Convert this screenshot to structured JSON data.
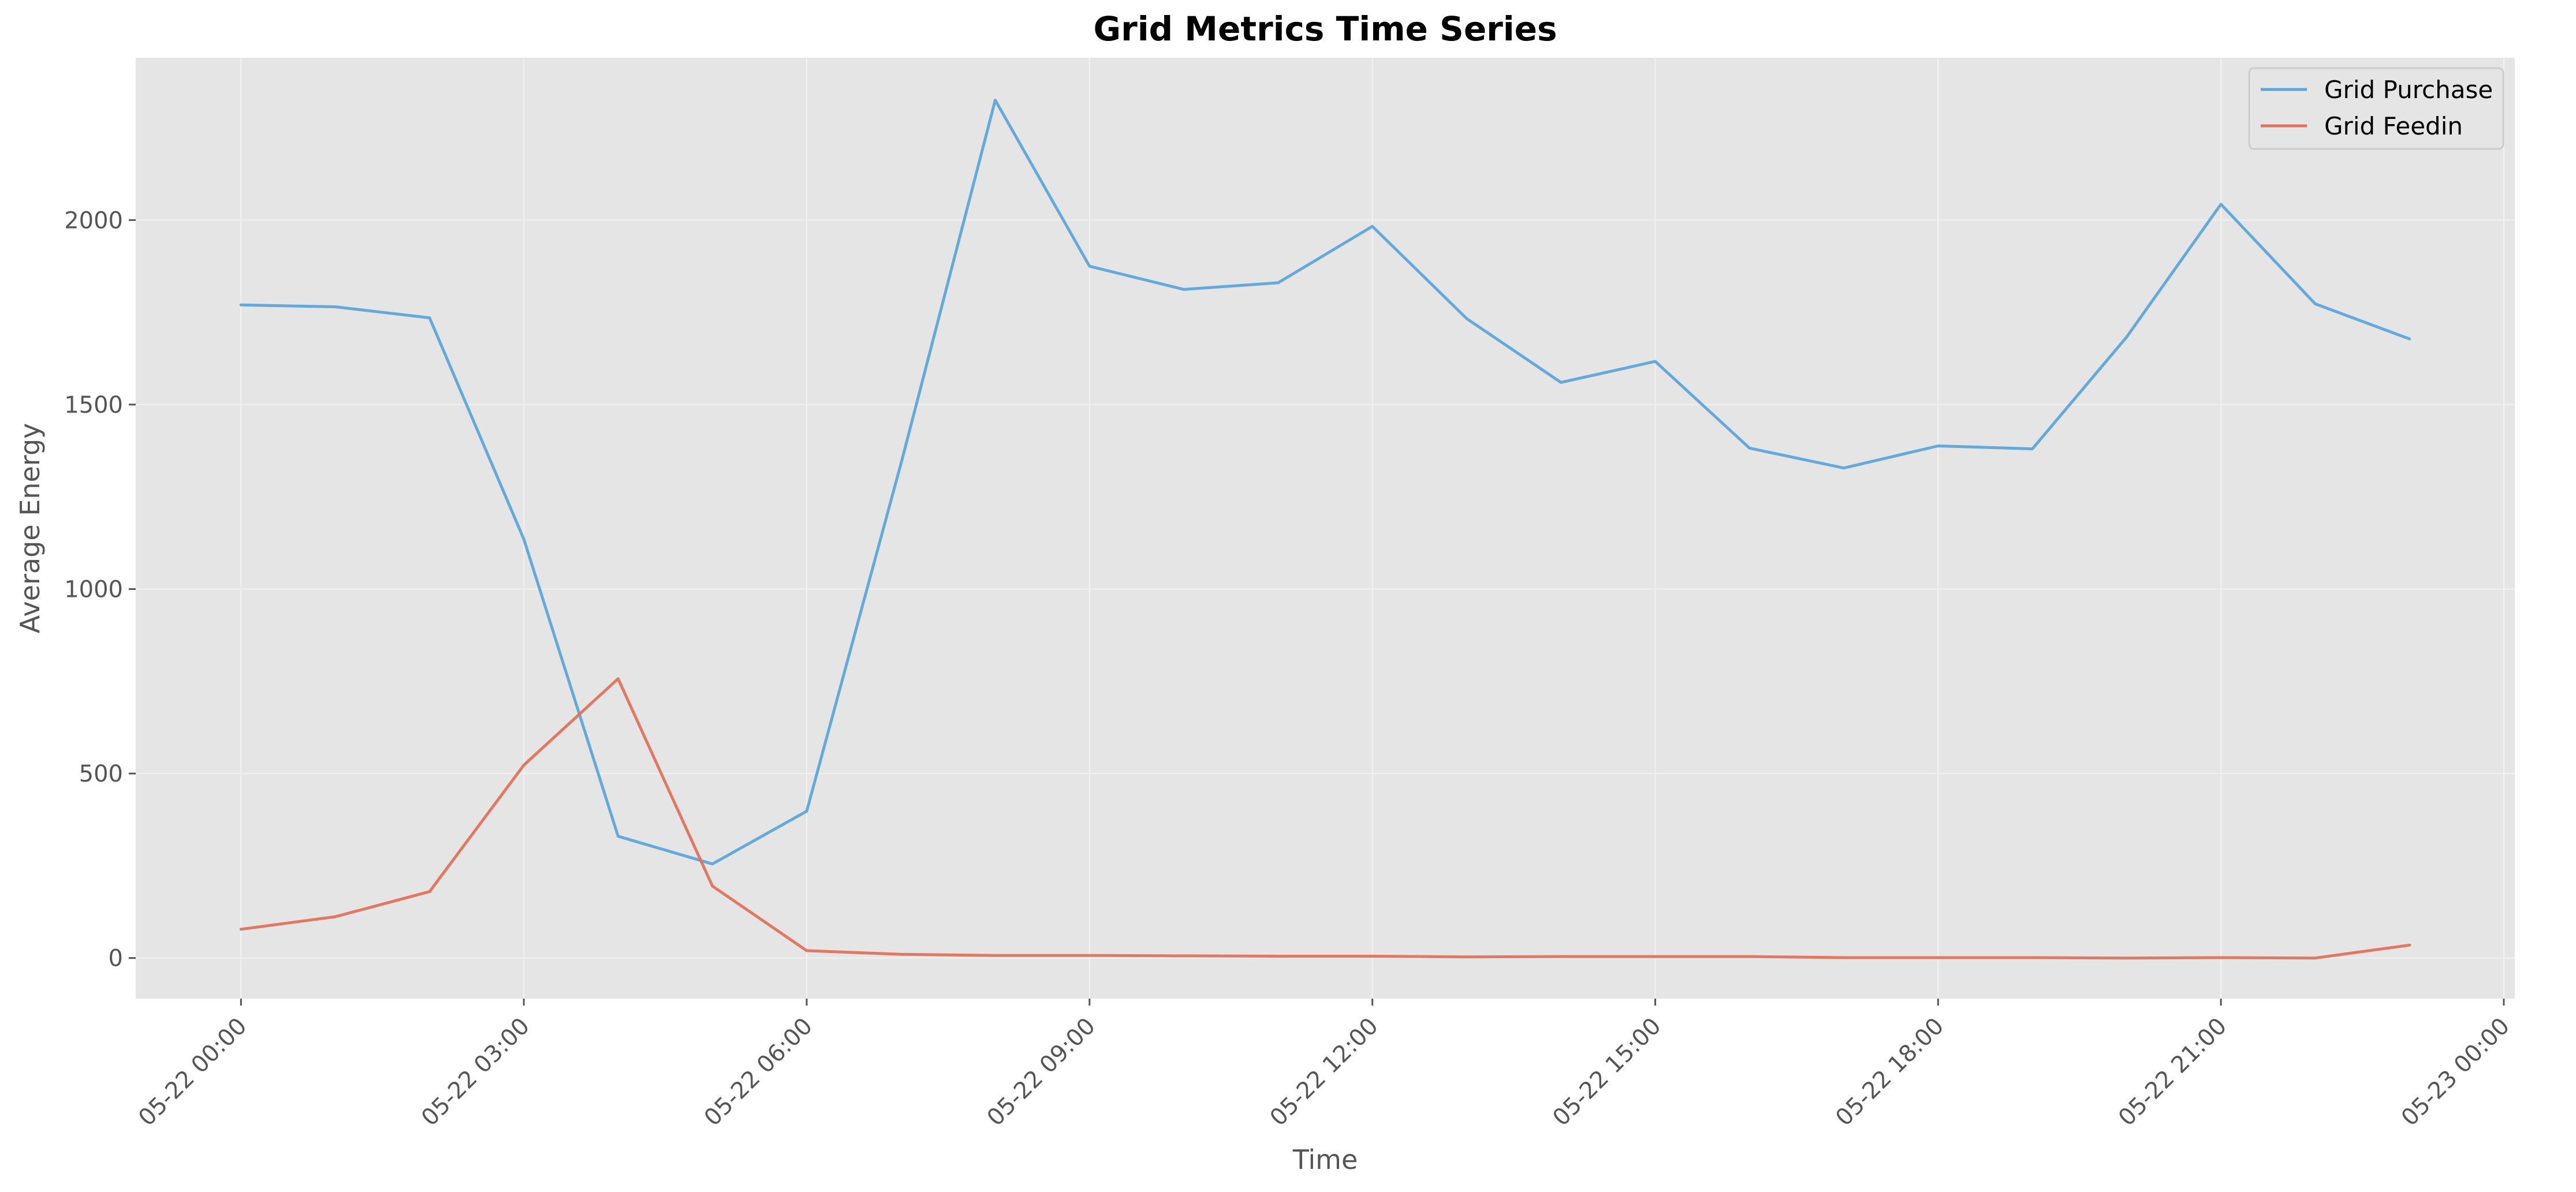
{
  "chart_data": {
    "type": "line",
    "title": "Grid Metrics Time Series",
    "xlabel": "Time",
    "ylabel": "Average Energy",
    "x": [
      "05-22 00:00",
      "05-22 01:00",
      "05-22 02:00",
      "05-22 03:00",
      "05-22 04:00",
      "05-22 05:00",
      "05-22 06:00",
      "05-22 07:00",
      "05-22 08:00",
      "05-22 09:00",
      "05-22 10:00",
      "05-22 11:00",
      "05-22 12:00",
      "05-22 13:00",
      "05-22 14:00",
      "05-22 15:00",
      "05-22 16:00",
      "05-22 17:00",
      "05-22 18:00",
      "05-22 19:00",
      "05-22 20:00",
      "05-22 21:00",
      "05-22 22:00",
      "05-22 23:00"
    ],
    "xlim": [
      "05-21 22:53",
      "05-23 00:07"
    ],
    "ylim": [
      -110,
      2440
    ],
    "x_ticks": [
      "05-22 00:00",
      "05-22 03:00",
      "05-22 06:00",
      "05-22 09:00",
      "05-22 12:00",
      "05-22 15:00",
      "05-22 18:00",
      "05-22 21:00",
      "05-23 00:00"
    ],
    "y_ticks": [
      0,
      500,
      1000,
      1500,
      2000
    ],
    "grid": true,
    "legend": "top-right",
    "series": [
      {
        "name": "Grid Purchase",
        "color": "#5DA5DA",
        "values": [
          1770,
          1765,
          1735,
          1135,
          330,
          255,
          398,
          1340,
          2325,
          1875,
          1812,
          1830,
          1983,
          1733,
          1560,
          1617,
          1382,
          1328,
          1388,
          1380,
          1683,
          2043,
          1773,
          1678
        ]
      },
      {
        "name": "Grid Feedin",
        "color": "#E2725B",
        "values": [
          78,
          112,
          180,
          523,
          757,
          195,
          20,
          10,
          7,
          7,
          6,
          5,
          5,
          3,
          4,
          4,
          4,
          1,
          1,
          1,
          0,
          1,
          0,
          35
        ]
      }
    ]
  }
}
